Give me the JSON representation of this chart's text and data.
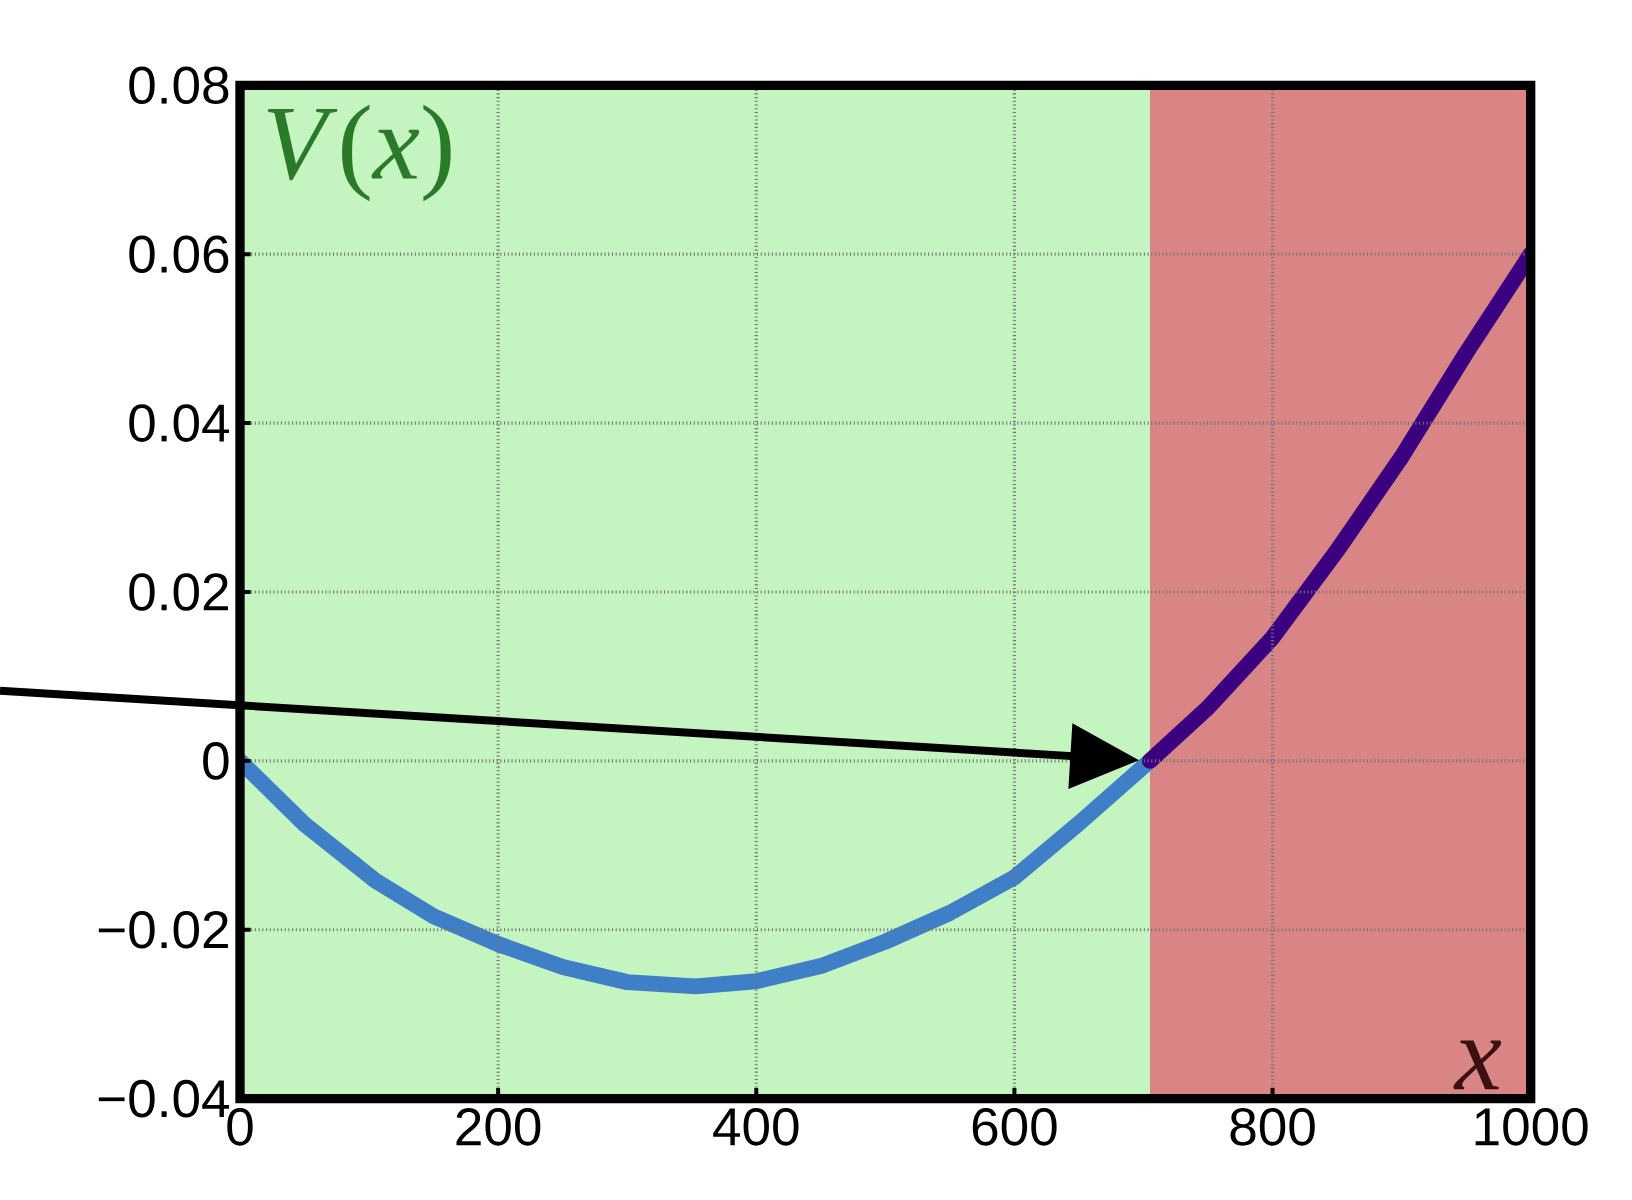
{
  "chart_data": {
    "type": "line",
    "xlabel": "x",
    "ylabel": "*V*(*x*)",
    "series": [
      {
        "color": "#3f7fc8",
        "x": [
          0,
          50,
          105,
          150,
          200,
          250,
          300,
          353,
          400,
          450,
          500,
          550,
          600,
          650,
          705
        ],
        "values": [
          0,
          -0.0075,
          -0.0142,
          -0.0184,
          -0.0217,
          -0.0244,
          -0.0262,
          -0.0267,
          -0.0261,
          -0.0243,
          -0.0214,
          -0.018,
          -0.0138,
          -0.0074,
          0
        ]
      },
      {
        "color": "#3a0080",
        "x": [
          705,
          750,
          800,
          850,
          900,
          950,
          1000
        ],
        "values": [
          0,
          0.0063,
          0.0146,
          0.0249,
          0.036,
          0.0483,
          0.06
        ]
      }
    ],
    "xlim": [
      0,
      1000
    ],
    "xticks": [
      0,
      200,
      400,
      600,
      800,
      1000
    ],
    "ylim": [
      -0.04,
      0.08
    ],
    "yticks": [
      {
        "value": -0.04,
        "label": "−0.04"
      },
      {
        "value": -0.02,
        "label": "−0.02"
      },
      0,
      0.02,
      0.04,
      0.06,
      0.08
    ],
    "bands": [
      {
        "axis": "x",
        "from": 0,
        "to": 705,
        "color": "#c4f5c0"
      },
      {
        "axis": "x",
        "from": 705,
        "to": 1000,
        "color": "#d98585"
      }
    ],
    "grid": true
  }
}
